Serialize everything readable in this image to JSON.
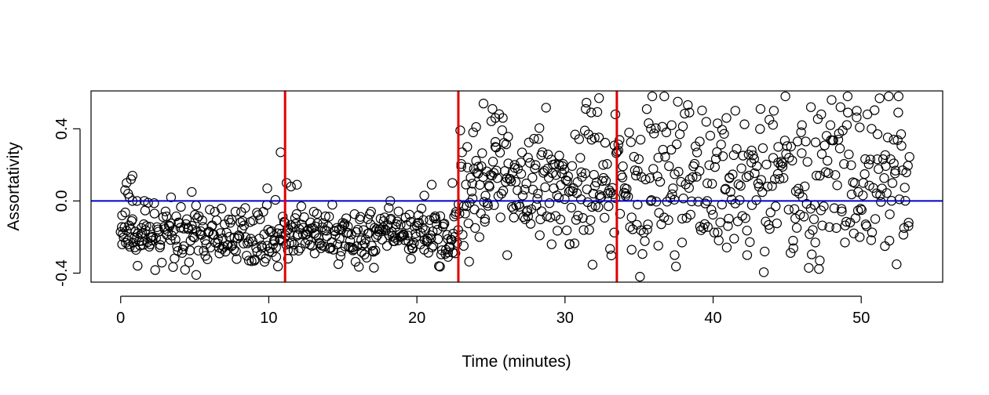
{
  "chart_data": {
    "type": "scatter",
    "title": "",
    "xlabel": "Time (minutes)",
    "ylabel": "Assortativity",
    "xlim": [
      -2,
      55.5
    ],
    "ylim": [
      -0.45,
      0.61
    ],
    "x_ticks": [
      0,
      10,
      20,
      30,
      40,
      50
    ],
    "x_tick_labels": [
      "0",
      "10",
      "20",
      "30",
      "40",
      "50"
    ],
    "y_ticks": [
      -0.4,
      0.0,
      0.4
    ],
    "y_tick_labels": [
      "-0.4",
      "0.0",
      "0.4"
    ],
    "grid": false,
    "legend": "none",
    "marker": "open-circle",
    "point_color": "#000000",
    "reference_lines": {
      "horizontal": {
        "y": 0.0,
        "color": "#0000cc"
      },
      "vertical": {
        "x": [
          11.1,
          22.8,
          33.5
        ],
        "color": "#e00000"
      }
    },
    "segments": [
      {
        "x0": 0.0,
        "x1": 11.1,
        "n": 200,
        "base": -0.19,
        "spread": 0.07
      },
      {
        "x0": 11.1,
        "x1": 22.8,
        "n": 220,
        "base": -0.19,
        "spread": 0.07
      },
      {
        "x0": 22.8,
        "x1": 33.5,
        "n": 200,
        "base": 0.1,
        "spread": 0.17
      },
      {
        "x0": 33.5,
        "x1": 53.3,
        "n": 300,
        "base": 0.1,
        "spread": 0.22
      }
    ],
    "points": [
      [
        0.1,
        -0.08
      ],
      [
        0.1,
        -0.24
      ],
      [
        0.3,
        0.06
      ],
      [
        0.4,
        0.1
      ],
      [
        0.5,
        0.04
      ],
      [
        0.6,
        0.02
      ],
      [
        0.7,
        0.12
      ],
      [
        0.8,
        0.0
      ],
      [
        0.8,
        0.14
      ],
      [
        1.0,
        -0.17
      ],
      [
        1.1,
        -0.2
      ],
      [
        1.4,
        -0.15
      ],
      [
        1.6,
        0.0
      ],
      [
        2.0,
        -0.24
      ],
      [
        5.1,
        -0.41
      ],
      [
        4.8,
        0.05
      ],
      [
        3.4,
        0.02
      ],
      [
        9.9,
        0.07
      ],
      [
        10.5,
        -0.31
      ],
      [
        10.8,
        0.27
      ],
      [
        11.2,
        0.1
      ],
      [
        11.5,
        0.08
      ],
      [
        11.9,
        0.09
      ],
      [
        11.3,
        -0.32
      ],
      [
        13.1,
        -0.29
      ],
      [
        14.9,
        -0.28
      ],
      [
        17.1,
        -0.37
      ],
      [
        18.2,
        0.0
      ],
      [
        19.6,
        -0.32
      ],
      [
        20.5,
        0.03
      ],
      [
        21.0,
        0.09
      ],
      [
        22.1,
        -0.31
      ],
      [
        22.6,
        -0.29
      ],
      [
        22.4,
        0.1
      ],
      [
        23.0,
        0.19
      ],
      [
        23.4,
        0.3
      ],
      [
        23.8,
        0.38
      ],
      [
        24.0,
        0.41
      ],
      [
        24.5,
        0.54
      ],
      [
        25.1,
        0.51
      ],
      [
        25.3,
        0.46
      ],
      [
        25.8,
        0.46
      ],
      [
        24.6,
        -0.1
      ],
      [
        25.3,
        0.3
      ],
      [
        26.1,
        -0.3
      ],
      [
        26.6,
        0.2
      ],
      [
        27.5,
        0.24
      ],
      [
        28.3,
        -0.19
      ],
      [
        29.1,
        -0.24
      ],
      [
        29.6,
        0.2
      ],
      [
        30.3,
        -0.24
      ],
      [
        31.4,
        0.51
      ],
      [
        31.8,
        0.34
      ],
      [
        32.3,
        0.57
      ],
      [
        32.0,
        0.35
      ],
      [
        33.4,
        0.48
      ],
      [
        33.6,
        0.28
      ],
      [
        34.1,
        0.04
      ],
      [
        34.5,
        -0.27
      ],
      [
        35.1,
        0.34
      ],
      [
        35.8,
        0.4
      ],
      [
        36.3,
        0.24
      ],
      [
        36.7,
        0.58
      ],
      [
        37.2,
        0.42
      ],
      [
        37.4,
        -0.3
      ],
      [
        38.4,
        0.49
      ],
      [
        39.6,
        0.0
      ],
      [
        40.3,
        0.43
      ],
      [
        40.9,
        0.46
      ],
      [
        41.5,
        0.5
      ],
      [
        42.6,
        0.28
      ],
      [
        43.2,
        0.51
      ],
      [
        44.1,
        0.5
      ],
      [
        44.7,
        0.21
      ],
      [
        45.4,
        -0.22
      ],
      [
        46.0,
        0.42
      ],
      [
        46.6,
        0.52
      ],
      [
        47.3,
        0.48
      ],
      [
        48.0,
        0.56
      ],
      [
        48.6,
        0.52
      ],
      [
        49.1,
        0.49
      ],
      [
        49.7,
        0.5
      ],
      [
        50.3,
        -0.13
      ],
      [
        50.7,
        0.4
      ],
      [
        51.1,
        0.37
      ],
      [
        51.6,
        -0.25
      ],
      [
        52.2,
        0.34
      ],
      [
        52.5,
        0.49
      ],
      [
        52.9,
        -0.15
      ],
      [
        53.2,
        -0.12
      ],
      [
        45.7,
        0.33
      ],
      [
        47.2,
        0.14
      ],
      [
        49.9,
        -0.2
      ],
      [
        43.8,
        0.45
      ],
      [
        42.3,
        -0.3
      ],
      [
        39.1,
        0.33
      ],
      [
        37.9,
        -0.23
      ],
      [
        35.6,
        -0.13
      ],
      [
        34.9,
        -0.02
      ],
      [
        46.9,
        -0.23
      ],
      [
        48.9,
        -0.23
      ],
      [
        51.9,
        -0.22
      ],
      [
        41.1,
        0.13
      ],
      [
        40.6,
        -0.02
      ],
      [
        44.4,
        0.3
      ]
    ],
    "fill_seed": 7
  }
}
